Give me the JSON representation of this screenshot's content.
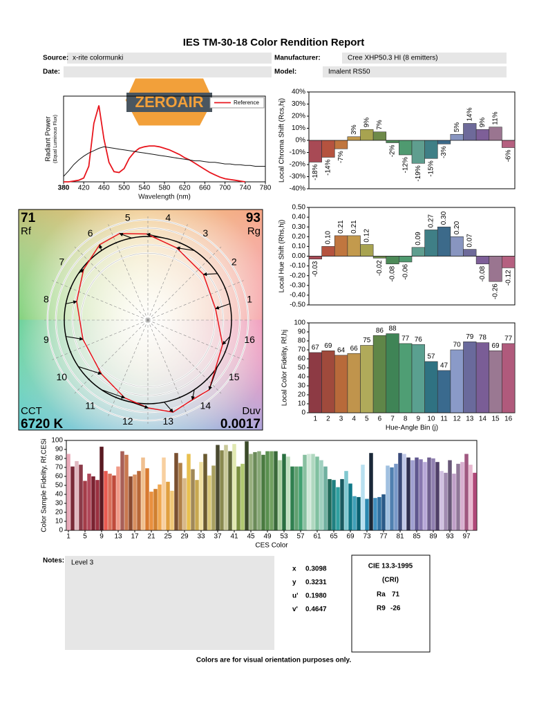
{
  "title": "IES TM-30-18 Color Rendition Report",
  "logo": "ZEROAIR",
  "fields": [
    {
      "label": "Source:",
      "value": "x-rite colormunki"
    },
    {
      "label": "Manufacturer:",
      "value": "Cree XHP50.3 HI (8 emitters)"
    },
    {
      "label": "Date:"
    },
    {
      "label": "Model:",
      "value": "Imalent RS50"
    }
  ],
  "chart_data": [
    {
      "type": "line",
      "x_label": "Wavelength (nm)",
      "y_label": "Radiant Power",
      "y_label_note": "(Equal Luminous Flux)",
      "x": [
        380,
        390,
        400,
        410,
        420,
        430,
        440,
        450,
        460,
        470,
        480,
        490,
        500,
        510,
        520,
        530,
        540,
        550,
        560,
        570,
        580,
        590,
        600,
        610,
        620,
        630,
        640,
        650,
        660,
        670,
        680,
        690,
        700,
        710,
        720,
        730,
        740,
        750,
        760,
        770,
        780
      ],
      "series": [
        {
          "name": "Reference",
          "color": "#e8141c",
          "values": [
            0,
            0,
            0.01,
            0.02,
            0.05,
            0.2,
            0.75,
            0.98,
            0.55,
            0.25,
            0.13,
            0.12,
            0.17,
            0.3,
            0.38,
            0.43,
            0.45,
            0.46,
            0.46,
            0.45,
            0.43,
            0.41,
            0.38,
            0.35,
            0.31,
            0.28,
            0.24,
            0.2,
            0.16,
            0.12,
            0.09,
            0.06,
            0.04,
            0.03,
            0.02,
            0.01,
            0,
            null,
            null,
            null,
            null
          ]
        },
        {
          "color": "#111111",
          "values": [
            0.07,
            0.14,
            0.22,
            0.28,
            0.33,
            0.37,
            0.4,
            0.43,
            0.45,
            0.44,
            0.43,
            0.42,
            0.41,
            0.4,
            0.39,
            0.38,
            0.37,
            0.36,
            0.35,
            0.34,
            0.33,
            0.32,
            0.31,
            0.3,
            0.29,
            0.28,
            0.27,
            0.27,
            0.26,
            0.25,
            0.25,
            0.24,
            0.23,
            0.23,
            0.22,
            0.22,
            0.21,
            0.21,
            0.2,
            0.2,
            0.2
          ]
        }
      ],
      "xlim": [
        380,
        780
      ],
      "xticks": [
        380,
        420,
        460,
        500,
        540,
        580,
        620,
        660,
        700,
        740,
        780
      ],
      "ylim": [
        0,
        1.1
      ],
      "legend": "top-right"
    },
    {
      "type": "bar",
      "y_label": "Local Chroma Shift (Rcs,hj)",
      "values": [
        -18,
        -14,
        -7,
        3,
        9,
        7,
        -2,
        -12,
        -19,
        -15,
        -3,
        5,
        14,
        9,
        11,
        -6
      ],
      "value_labels": [
        "-18%",
        "-14%",
        "-7%",
        "3%",
        "9%",
        "7%",
        "-2%",
        "-12%",
        "-19%",
        "-15%",
        "-3%",
        "5%",
        "14%",
        "9%",
        "11%",
        "-6%"
      ],
      "colors": [
        "#a84a55",
        "#b5533f",
        "#c0763f",
        "#c39a4d",
        "#a8a350",
        "#6e8a49",
        "#4d8a58",
        "#4f9a70",
        "#5f9e8f",
        "#3f7f86",
        "#3c6a8a",
        "#8895c0",
        "#6e6a9a",
        "#7e5f98",
        "#9a7590",
        "#b56080"
      ],
      "ylim": [
        -40,
        40
      ],
      "yticks": [
        {
          "value": -40,
          "label": "-40%"
        },
        {
          "value": -30,
          "label": "-30%"
        },
        {
          "value": -20,
          "label": "-20%"
        },
        {
          "value": -10,
          "label": "-10%"
        },
        {
          "value": 0,
          "label": "0%"
        },
        {
          "value": 10,
          "label": "10%"
        },
        {
          "value": 20,
          "label": "20%"
        },
        {
          "value": 30,
          "label": "30%"
        },
        {
          "value": 40,
          "label": "40%"
        }
      ],
      "grid": false
    },
    {
      "type": "bar",
      "y_label": "Local Hue Shift (Rhs,hj)",
      "values": [
        -0.03,
        0.1,
        0.21,
        0.21,
        0.12,
        -0.02,
        -0.08,
        -0.06,
        0.09,
        0.27,
        0.3,
        0.2,
        0.07,
        -0.08,
        -0.26,
        -0.12
      ],
      "value_labels": [
        "-0.03",
        "0.10",
        "0.21",
        "0.21",
        "0.12",
        "-0.02",
        "-0.08",
        "-0.06",
        "0.09",
        "0.27",
        "0.30",
        "0.20",
        "0.07",
        "-0.08",
        "-0.26",
        "-0.12"
      ],
      "colors": [
        "#a84a55",
        "#b5533f",
        "#c0763f",
        "#c39a4d",
        "#a8a350",
        "#6e8a49",
        "#4d8a58",
        "#4f9a70",
        "#5f9e8f",
        "#3f7f86",
        "#3c6a8a",
        "#8895c0",
        "#6e6a9a",
        "#7e5f98",
        "#9a7590",
        "#b56080"
      ],
      "ylim": [
        -0.5,
        0.5
      ],
      "yticks": [
        {
          "value": -0.5,
          "label": "-0.50"
        },
        {
          "value": -0.4,
          "label": "-0.40"
        },
        {
          "value": -0.3,
          "label": "-0.30"
        },
        {
          "value": -0.2,
          "label": "-0.20"
        },
        {
          "value": -0.1,
          "label": "-0.10"
        },
        {
          "value": 0,
          "label": "0.00"
        },
        {
          "value": 0.1,
          "label": "0.10"
        },
        {
          "value": 0.2,
          "label": "0.20"
        },
        {
          "value": 0.3,
          "label": "0.30"
        },
        {
          "value": 0.4,
          "label": "0.40"
        },
        {
          "value": 0.5,
          "label": "0.50"
        }
      ],
      "grid": false
    },
    {
      "type": "bar",
      "y_label": "Local Color Fidelity, Rf,hj",
      "x_label": "Hue-Angle Bin (j)",
      "categories": [
        "1",
        "2",
        "3",
        "4",
        "5",
        "6",
        "7",
        "8",
        "9",
        "10",
        "11",
        "12",
        "13",
        "14",
        "15",
        "16"
      ],
      "values": [
        67,
        69,
        64,
        66,
        75,
        86,
        88,
        77,
        76,
        57,
        47,
        70,
        79,
        78,
        69,
        77
      ],
      "colors": [
        "#8d3a44",
        "#a04a3c",
        "#b86a3a",
        "#c0944c",
        "#b0aa5a",
        "#5f8648",
        "#3f8456",
        "#4f9e74",
        "#5aa090",
        "#2f7282",
        "#3a6a8e",
        "#8a9ac8",
        "#6a6a9c",
        "#7a5d96",
        "#9a7892",
        "#b05a7c"
      ],
      "ylim": [
        0,
        100
      ],
      "yticks": [
        0,
        10,
        20,
        30,
        40,
        50,
        60,
        70,
        80,
        90,
        100
      ],
      "grid": false
    },
    {
      "type": "vector",
      "rf": 71,
      "rf_label": "Rf",
      "rg": 93,
      "rg_label": "Rg",
      "cct_label": "CCT",
      "cct": "6720 K",
      "duv_label": "Duv",
      "duv": 0.0017
    },
    {
      "type": "bar",
      "y_label": "Color Sample Fidelity, Rf,CESi",
      "x_label": "CES Color",
      "x": [
        1,
        2,
        3,
        4,
        5,
        6,
        7,
        8,
        9,
        10,
        11,
        12,
        13,
        14,
        15,
        16,
        17,
        18,
        19,
        20,
        21,
        22,
        23,
        24,
        25,
        26,
        27,
        28,
        29,
        30,
        31,
        32,
        33,
        34,
        35,
        36,
        37,
        38,
        39,
        40,
        41,
        42,
        43,
        44,
        45,
        46,
        47,
        48,
        49,
        50,
        51,
        52,
        53,
        54,
        55,
        56,
        57,
        58,
        59,
        60,
        61,
        62,
        63,
        64,
        65,
        66,
        67,
        68,
        69,
        70,
        71,
        72,
        73,
        74,
        75,
        76,
        77,
        78,
        79,
        80,
        81,
        82,
        83,
        84,
        85,
        86,
        87,
        88,
        89,
        90,
        91,
        92,
        93,
        94,
        95,
        96,
        97,
        98,
        99
      ],
      "values": [
        85,
        71,
        77,
        73,
        55,
        63,
        60,
        56,
        93,
        66,
        63,
        61,
        71,
        88,
        84,
        60,
        62,
        66,
        81,
        69,
        43,
        46,
        51,
        81,
        54,
        44,
        86,
        75,
        58,
        85,
        68,
        56,
        76,
        85,
        61,
        72,
        95,
        89,
        95,
        88,
        96,
        71,
        74,
        99,
        85,
        87,
        88,
        84,
        88,
        88,
        88,
        78,
        85,
        82,
        71,
        71,
        71,
        84,
        85,
        85,
        82,
        78,
        71,
        57,
        56,
        48,
        57,
        66,
        52,
        38,
        37,
        73,
        35,
        86,
        36,
        37,
        40,
        72,
        70,
        74,
        86,
        85,
        81,
        78,
        81,
        79,
        76,
        81,
        80,
        76,
        66,
        64,
        78,
        63,
        74,
        76,
        85,
        73,
        64
      ],
      "colors": [
        "#e8a9b8",
        "#7a2a38",
        "#e0b8c0",
        "#8a3a48",
        "#a43c48",
        "#b0485a",
        "#7a2230",
        "#9a3040",
        "#5a1a22",
        "#e85a50",
        "#d8705a",
        "#c04a3a",
        "#f09a88",
        "#a86058",
        "#c87850",
        "#8a4a30",
        "#d89060",
        "#b86838",
        "#f0c090",
        "#d87a30",
        "#e89040",
        "#d08030",
        "#f0a850",
        "#f8d0a0",
        "#e0a040",
        "#f0c878",
        "#7a5030",
        "#b08048",
        "#d8b888",
        "#e8c050",
        "#a08858",
        "#c8a850",
        "#f0e0a0",
        "#6a5a30",
        "#d8c878",
        "#a8a060",
        "#4a4a30",
        "#8a8a50",
        "#c8c898",
        "#606838",
        "#e0e8b0",
        "#7a9040",
        "#b0c870",
        "#3a4a28",
        "#98b080",
        "#6a8a58",
        "#88a878",
        "#4a7a40",
        "#5a9050",
        "#70a060",
        "#3a6a3a",
        "#a8d0a0",
        "#2a7040",
        "#c0e0c0",
        "#308050",
        "#60a070",
        "#40a070",
        "#88c0a0",
        "#d0e8d8",
        "#b0d8c0",
        "#80c0a0",
        "#a0d0c0",
        "#70b0a0",
        "#206858",
        "#208080",
        "#30a0a0",
        "#1a5a60",
        "#80c8d0",
        "#107888",
        "#40a0b8",
        "#0a6070",
        "#b8e0f0",
        "#2a88b0",
        "#1a2838",
        "#4090c0",
        "#3070a0",
        "#2a5a88",
        "#a0c0e0",
        "#5080b0",
        "#7898c8",
        "#3a4a7a",
        "#c0c8e8",
        "#303050",
        "#a0a0d0",
        "#605890",
        "#8878b0",
        "#b8a8d8",
        "#706090",
        "#9080b0",
        "#504068",
        "#d0c0e0",
        "#a08ab0",
        "#685878",
        "#c0a0c8",
        "#907898",
        "#d8b0d0",
        "#a05880",
        "#e8b8d0",
        "#b04878"
      ],
      "xlim": [
        0.5,
        99.5
      ],
      "xticks": [
        1,
        5,
        9,
        13,
        17,
        21,
        25,
        29,
        33,
        37,
        41,
        45,
        49,
        53,
        57,
        61,
        65,
        69,
        73,
        77,
        81,
        85,
        89,
        93,
        97
      ],
      "ylim": [
        0,
        100
      ],
      "yticks": [
        0,
        10,
        20,
        30,
        40,
        50,
        60,
        70,
        80,
        90,
        100
      ],
      "grid": false
    }
  ],
  "notes": {
    "label": "Notes:",
    "text": "Level 3"
  },
  "chromaticity": [
    {
      "label": "x",
      "value": "0.3098"
    },
    {
      "label": "y",
      "value": "0.3231"
    },
    {
      "label": "u'",
      "value": "0.1980"
    },
    {
      "label": "v'",
      "value": "0.4647"
    }
  ],
  "cri": {
    "title": "CIE 13.3-1995",
    "subtitle": "(CRI)",
    "ra_label": "Ra",
    "ra": 71,
    "r9_label": "R9",
    "r9": -26
  },
  "footer": "Colors are for visual orientation purposes only."
}
